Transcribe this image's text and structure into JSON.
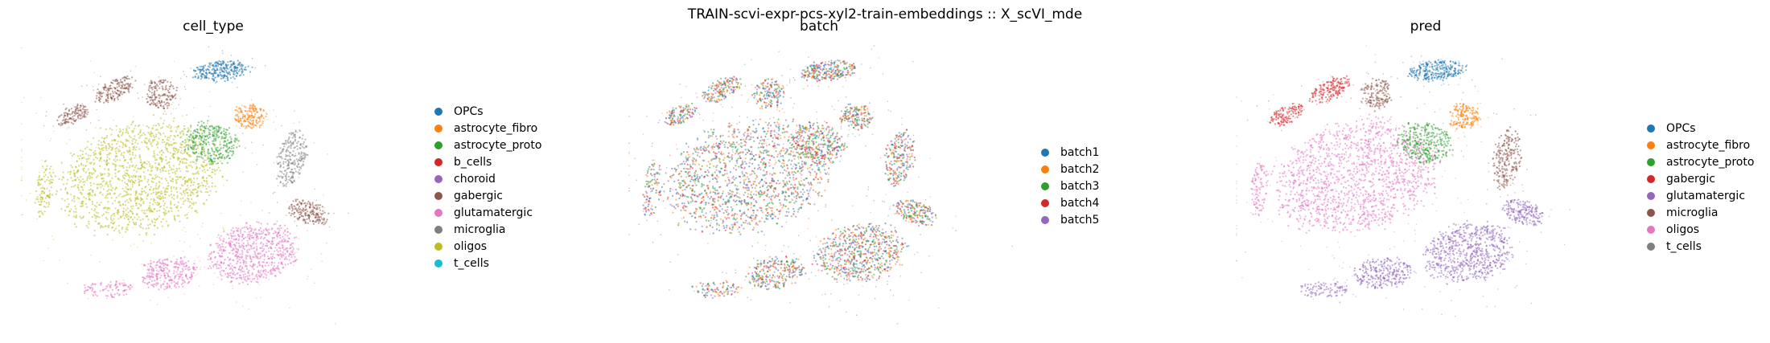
{
  "suptitle": "TRAIN-scvi-expr-pcs-xyl2-train-embeddings :: X_scVI_mde",
  "panels": [
    {
      "title": "cell_type"
    },
    {
      "title": "batch"
    },
    {
      "title": "pred"
    }
  ],
  "chart_data": [
    {
      "type": "scatter",
      "title": "cell_type",
      "xlabel": "",
      "ylabel": "",
      "grid": false,
      "legend_position": "right",
      "categories": [
        {
          "label": "OPCs",
          "color": "#1f77b4"
        },
        {
          "label": "astrocyte_fibro",
          "color": "#ff7f0e"
        },
        {
          "label": "astrocyte_proto",
          "color": "#2ca02c"
        },
        {
          "label": "b_cells",
          "color": "#d62728"
        },
        {
          "label": "choroid",
          "color": "#9467bd"
        },
        {
          "label": "gabergic",
          "color": "#8c564b"
        },
        {
          "label": "glutamatergic",
          "color": "#e377c2"
        },
        {
          "label": "microglia",
          "color": "#7f7f7f"
        },
        {
          "label": "oligos",
          "color": "#bcbd22"
        },
        {
          "label": "t_cells",
          "color": "#17becf"
        }
      ]
    },
    {
      "type": "scatter",
      "title": "batch",
      "xlabel": "",
      "ylabel": "",
      "grid": false,
      "legend_position": "right",
      "categories": [
        {
          "label": "batch1",
          "color": "#1f77b4"
        },
        {
          "label": "batch2",
          "color": "#ff7f0e"
        },
        {
          "label": "batch3",
          "color": "#2ca02c"
        },
        {
          "label": "batch4",
          "color": "#d62728"
        },
        {
          "label": "batch5",
          "color": "#9467bd"
        }
      ]
    },
    {
      "type": "scatter",
      "title": "pred",
      "xlabel": "",
      "ylabel": "",
      "grid": false,
      "legend_position": "right",
      "categories": [
        {
          "label": "OPCs",
          "color": "#1f77b4"
        },
        {
          "label": "astrocyte_fibro",
          "color": "#ff7f0e"
        },
        {
          "label": "astrocyte_proto",
          "color": "#2ca02c"
        },
        {
          "label": "gabergic",
          "color": "#d62728"
        },
        {
          "label": "glutamatergic",
          "color": "#9467bd"
        },
        {
          "label": "microglia",
          "color": "#8c564b"
        },
        {
          "label": "oligos",
          "color": "#e377c2"
        },
        {
          "label": "t_cells",
          "color": "#7f7f7f"
        }
      ]
    }
  ]
}
